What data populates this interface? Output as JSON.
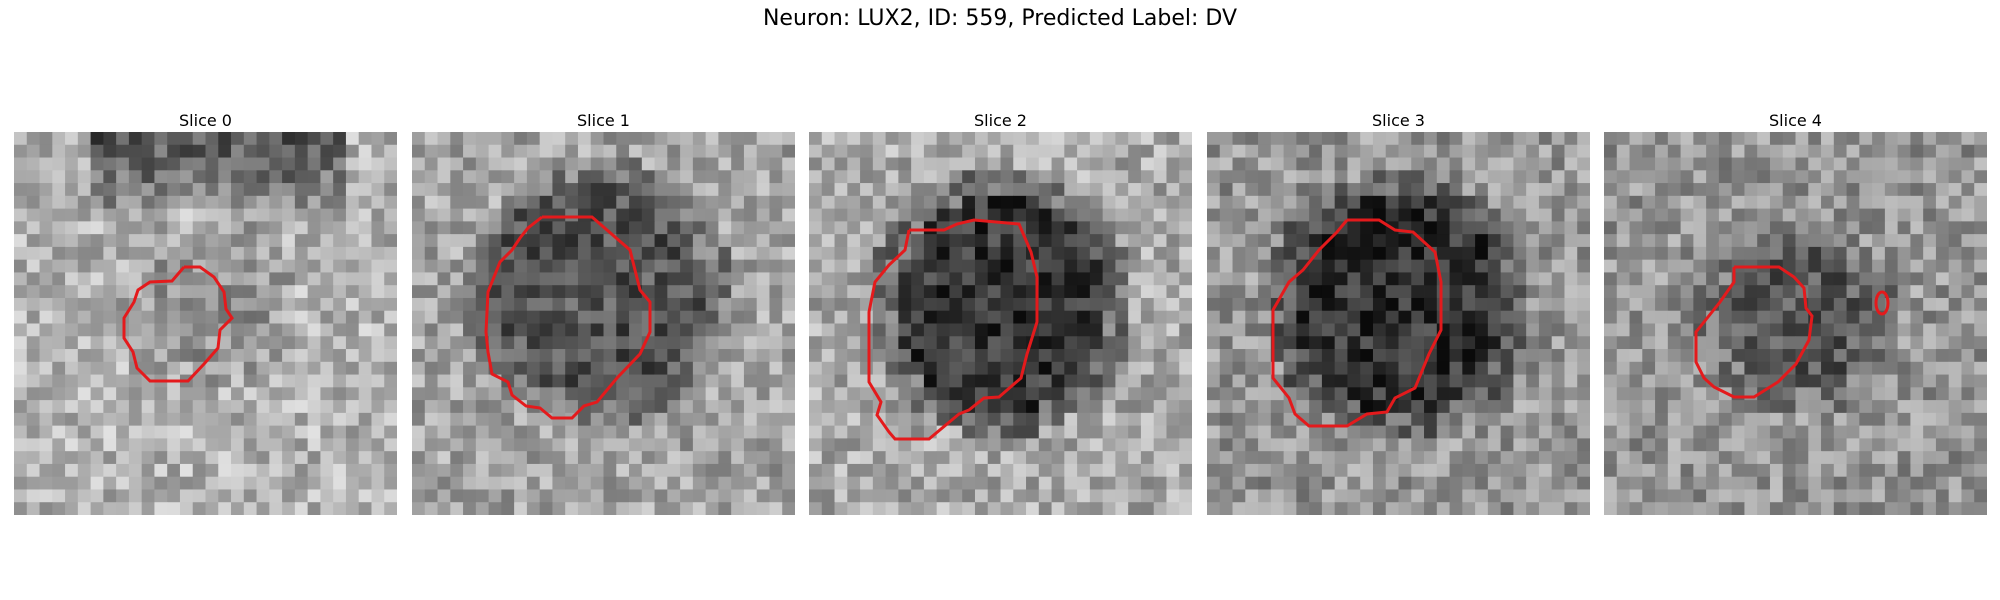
{
  "figure": {
    "title": "Neuron: LUX2, ID: 559, Predicted Label: DV"
  },
  "panels": [
    {
      "label": "Slice 0"
    },
    {
      "label": "Slice 1"
    },
    {
      "label": "Slice 2"
    },
    {
      "label": "Slice 3"
    },
    {
      "label": "Slice 4"
    }
  ],
  "contour_color": "#e41a1c",
  "colormap": "grayscale"
}
